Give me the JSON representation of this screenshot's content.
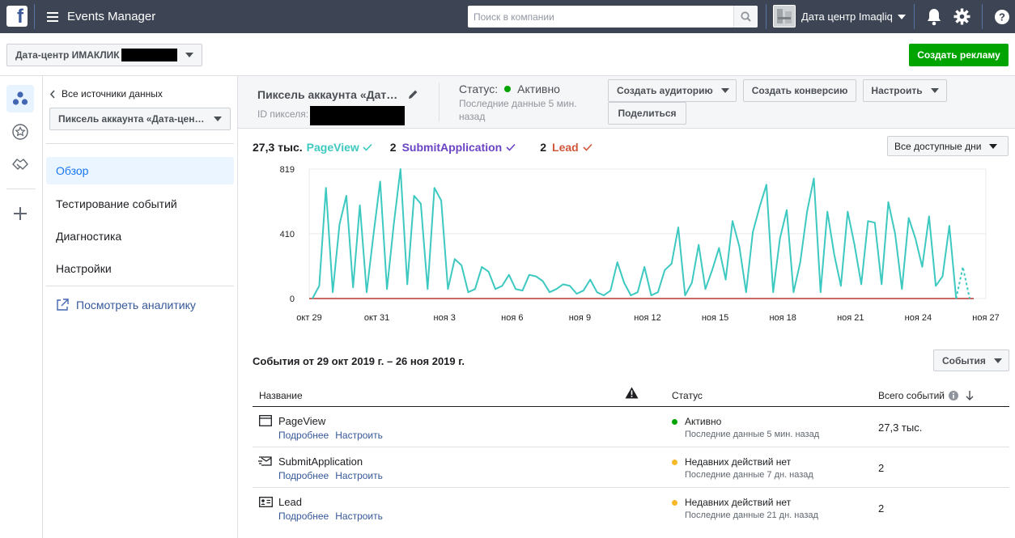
{
  "topbar": {
    "app_title": "Events Manager",
    "search_placeholder": "Поиск в компании",
    "account_name": "Дата центр Imaqliq"
  },
  "subbar": {
    "account_selector": "Дата-центр ИМАКЛИК",
    "create_ad_button": "Создать рекламу"
  },
  "sidebar": {
    "back_link": "Все источники данных",
    "pixel_selector": "Пиксель аккаунта «Дата-цен…",
    "nav": [
      "Обзор",
      "Тестирование событий",
      "Диагностика",
      "Настройки"
    ],
    "analytics_link": "Посмотреть аналитику"
  },
  "pixel": {
    "name": "Пиксель аккаунта «Дат…",
    "id_label": "ID пикселя:",
    "status_label": "Статус:",
    "status_value": "Активно",
    "last_data": "Последние данные 5 мин.",
    "last_data_2": "назад",
    "buttons": {
      "create_audience": "Создать аудиторию",
      "create_conversion": "Создать конверсию",
      "setup": "Настроить",
      "share": "Поделиться"
    }
  },
  "legend": {
    "items": [
      {
        "count": "27,3 тыс.",
        "name": "PageView",
        "color": "#3dc9c0"
      },
      {
        "count": "2",
        "name": "SubmitApplication",
        "color": "#6b44c4"
      },
      {
        "count": "2",
        "name": "Lead",
        "color": "#d2583c"
      }
    ],
    "range_selector": "Все доступные дни"
  },
  "chart_data": {
    "type": "line",
    "y_ticks": [
      "819",
      "410",
      "0"
    ],
    "ylim": [
      0,
      819
    ],
    "x_tick_labels": [
      "окт 29",
      "окт 31",
      "ноя 3",
      "ноя 6",
      "ноя 9",
      "ноя 12",
      "ноя 15",
      "ноя 18",
      "ноя 21",
      "ноя 24",
      "ноя 27"
    ],
    "grid": true,
    "series": [
      {
        "name": "PageView",
        "color": "#3dc9c0",
        "values": [
          0,
          80,
          700,
          40,
          470,
          650,
          70,
          590,
          40,
          400,
          740,
          60,
          470,
          819,
          90,
          650,
          600,
          60,
          700,
          620,
          60,
          250,
          210,
          40,
          60,
          200,
          170,
          60,
          80,
          150,
          60,
          50,
          150,
          140,
          110,
          40,
          60,
          90,
          80,
          30,
          50,
          120,
          40,
          20,
          50,
          230,
          100,
          20,
          40,
          200,
          20,
          40,
          180,
          220,
          450,
          20,
          100,
          340,
          60,
          180,
          320,
          120,
          490,
          330,
          40,
          420,
          580,
          720,
          40,
          380,
          560,
          40,
          230,
          550,
          760,
          40,
          550,
          280,
          80,
          550,
          340,
          90,
          490,
          480,
          90,
          610,
          410,
          60,
          510,
          380,
          200,
          520,
          80,
          140,
          460,
          0,
          200,
          0
        ],
        "dashed_tail": true
      },
      {
        "name": "SubmitApplication",
        "color": "#6b44c4",
        "values": [
          0,
          0
        ]
      },
      {
        "name": "Lead",
        "color": "#d2583c",
        "values": [
          0,
          0
        ]
      }
    ]
  },
  "events": {
    "title": "События от 29 окт 2019 г. – 26 ноя 2019 г.",
    "events_button": "События",
    "columns": [
      "Название",
      "Статус",
      "Всего событий"
    ],
    "rows": [
      {
        "name": "PageView",
        "details": "Подробнее",
        "setup": "Настроить",
        "status": "Активно",
        "status_color": "#00a400",
        "last": "Последние данные 5 мин. назад",
        "total": "27,3 тыс."
      },
      {
        "name": "SubmitApplication",
        "details": "Подробнее",
        "setup": "Настроить",
        "status": "Недавних действий нет",
        "status_color": "#f7b928",
        "last": "Последние данные 7 дн. назад",
        "total": "2"
      },
      {
        "name": "Lead",
        "details": "Подробнее",
        "setup": "Настроить",
        "status": "Недавних действий нет",
        "status_color": "#f7b928",
        "last": "Последние данные 21 дн. назад",
        "total": "2"
      }
    ]
  }
}
